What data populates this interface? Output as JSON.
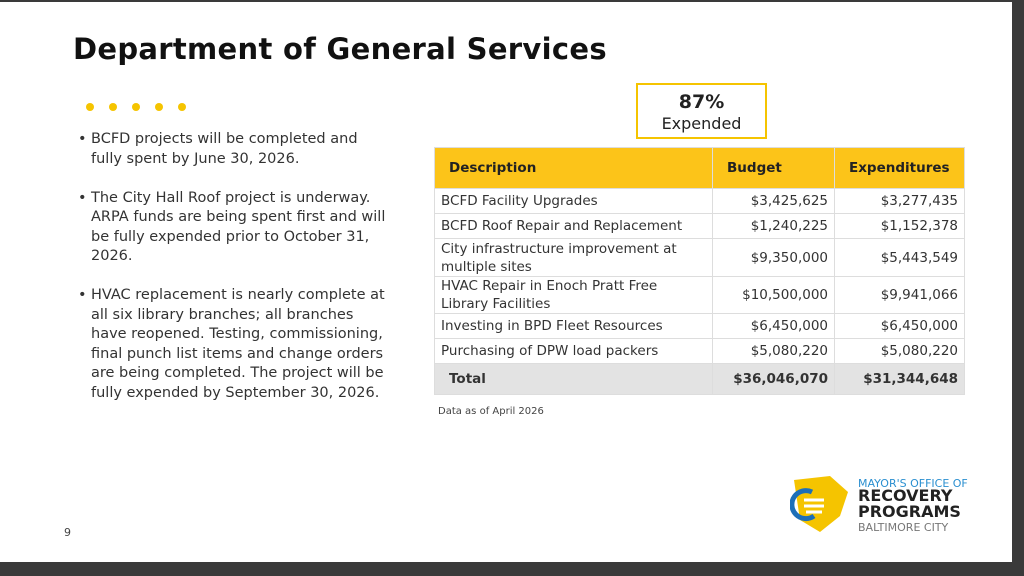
{
  "header": {
    "title": "Department of General Services"
  },
  "bullets": [
    "BCFD projects will be completed and fully spent by June 30, 2026.",
    "The City Hall Roof project is underway.  ARPA funds are being spent first and will be fully expended prior to October 31, 2026.",
    "HVAC replacement is nearly complete at all six library branches; all branches have reopened. Testing, commissioning, final punch list items and change orders are being completed. The project will be fully expended by September 30, 2026."
  ],
  "callout": {
    "value": "87%",
    "label": "Expended"
  },
  "table": {
    "header": [
      "Description",
      "Budget",
      "Expenditures"
    ],
    "rows": [
      [
        "BCFD Facility Upgrades",
        "$3,425,625",
        "$3,277,435"
      ],
      [
        "BCFD Roof Repair and Replacement",
        "$1,240,225",
        "$1,152,378"
      ],
      [
        "City infrastructure improvement at multiple sites",
        "$9,350,000",
        "$5,443,549"
      ],
      [
        "HVAC Repair in Enoch Pratt Free Library Facilities",
        "$10,500,000",
        "$9,941,066"
      ],
      [
        "Investing in BPD Fleet Resources",
        "$6,450,000",
        "$6,450,000"
      ],
      [
        "Purchasing of DPW load packers",
        "$5,080,220",
        "$5,080,220"
      ]
    ],
    "total": [
      "Total",
      "$36,046,070",
      "$31,344,648"
    ]
  },
  "footnote": "Data as of April 2026",
  "page_number": "9",
  "logo": {
    "line1": "MAYOR'S OFFICE OF",
    "line2": "RECOVERY",
    "line3": "PROGRAMS",
    "line4": "BALTIMORE CITY"
  }
}
